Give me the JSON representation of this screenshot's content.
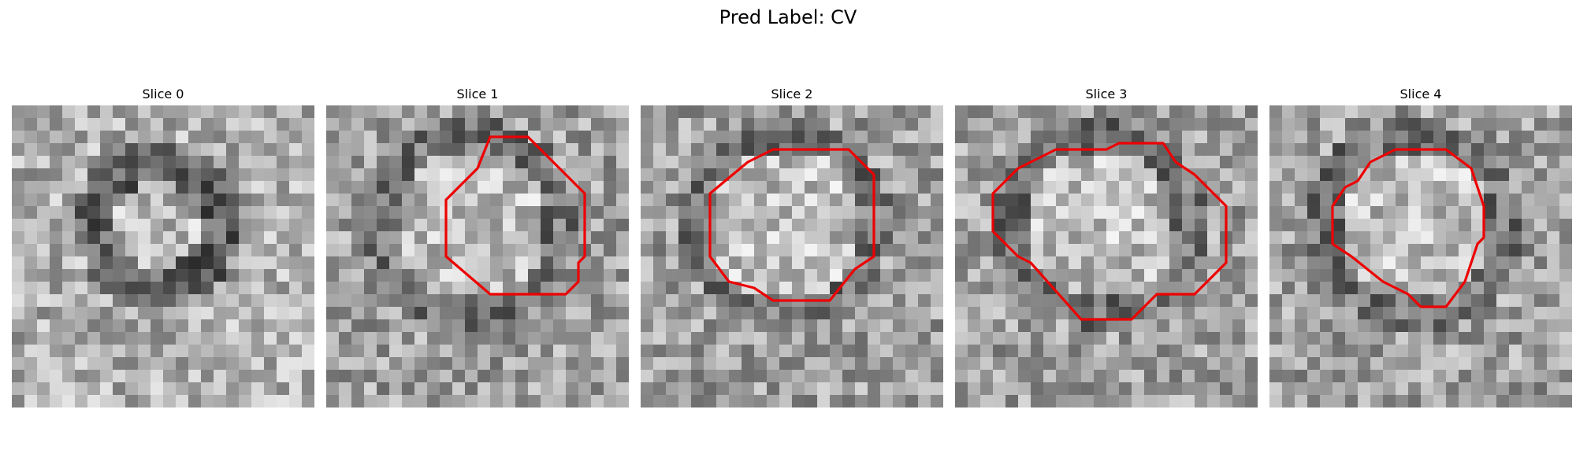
{
  "figure": {
    "title": "Pred Label: CV"
  },
  "panels": [
    {
      "title": "Slice 0",
      "contour_color": "#ee0000",
      "contour": [],
      "seed": 11,
      "pattern": "ring"
    },
    {
      "title": "Slice 1",
      "contour_color": "#ee0000",
      "contour": [
        [
          13,
          2.5
        ],
        [
          16,
          2.5
        ],
        [
          20.5,
          7
        ],
        [
          20.5,
          12
        ],
        [
          20,
          12.5
        ],
        [
          20,
          14
        ],
        [
          19,
          15
        ],
        [
          16,
          15
        ],
        [
          13,
          15
        ],
        [
          9.5,
          12
        ],
        [
          9.5,
          7.5
        ],
        [
          10.5,
          6.5
        ],
        [
          12,
          5
        ]
      ],
      "seed": 23,
      "pattern": "blob"
    },
    {
      "title": "Slice 2",
      "contour_color": "#ee0000",
      "contour": [
        [
          10.5,
          3.5
        ],
        [
          16.5,
          3.5
        ],
        [
          18.5,
          5.5
        ],
        [
          18.5,
          12
        ],
        [
          17,
          13
        ],
        [
          15,
          15.5
        ],
        [
          10.5,
          15.5
        ],
        [
          9,
          14.5
        ],
        [
          7,
          14
        ],
        [
          5.5,
          12
        ],
        [
          5.5,
          7
        ],
        [
          8.5,
          4.5
        ]
      ],
      "seed": 37,
      "pattern": "blob"
    },
    {
      "title": "Slice 3",
      "contour_color": "#ee0000",
      "contour": [
        [
          8,
          3.5
        ],
        [
          12,
          3.5
        ],
        [
          13,
          3
        ],
        [
          16.5,
          3
        ],
        [
          17.5,
          4.5
        ],
        [
          19,
          5.5
        ],
        [
          21.5,
          8
        ],
        [
          21.5,
          12.5
        ],
        [
          19,
          15
        ],
        [
          16,
          15
        ],
        [
          14,
          17
        ],
        [
          10,
          17
        ],
        [
          6,
          12.5
        ],
        [
          5,
          12
        ],
        [
          3,
          10
        ],
        [
          3,
          7
        ],
        [
          4,
          6
        ],
        [
          5,
          5
        ]
      ],
      "seed": 53,
      "pattern": "blob"
    },
    {
      "title": "Slice 4",
      "contour_color": "#ee0000",
      "contour": [
        [
          10,
          3.5
        ],
        [
          14,
          3.5
        ],
        [
          16,
          5
        ],
        [
          16.5,
          6.5
        ],
        [
          17,
          8
        ],
        [
          17,
          10.5
        ],
        [
          16.5,
          11
        ],
        [
          16,
          12.5
        ],
        [
          15.5,
          14
        ],
        [
          14,
          16
        ],
        [
          12,
          16
        ],
        [
          11,
          15
        ],
        [
          9,
          14
        ],
        [
          6.5,
          12
        ],
        [
          5,
          11
        ],
        [
          5,
          8
        ],
        [
          6,
          6.5
        ],
        [
          7,
          6
        ],
        [
          8,
          4.5
        ]
      ],
      "seed": 71,
      "pattern": "blob"
    }
  ]
}
